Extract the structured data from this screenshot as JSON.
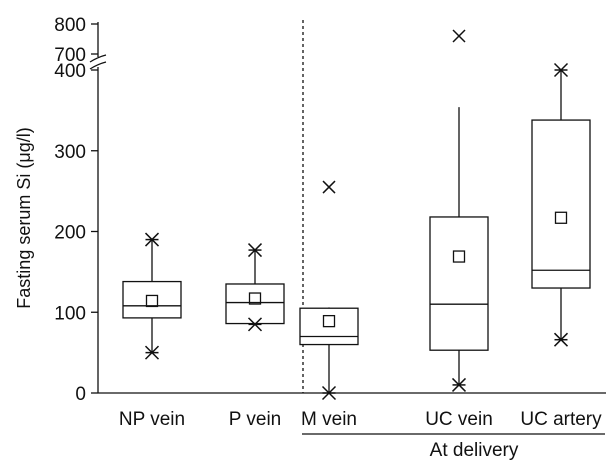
{
  "chart_data": {
    "type": "box",
    "title": "",
    "ylabel": "Fasting serum Si (μg/l)",
    "xlabel": "",
    "axis_break": {
      "lower_range": [
        0,
        400
      ],
      "upper_range": [
        700,
        800
      ],
      "upper_ticks": [
        700,
        800
      ]
    },
    "yticks": [
      0,
      100,
      200,
      300,
      400
    ],
    "group_label": "At delivery",
    "group_members": [
      "M vein",
      "UC vein",
      "UC artery"
    ],
    "divider_between": [
      "P vein",
      "M vein"
    ],
    "categories": [
      "NP vein",
      "P vein",
      "M vein",
      "UC vein",
      "UC artery"
    ],
    "boxes": [
      {
        "label": "NP vein",
        "whisker_low": 50,
        "q1": 93,
        "median": 108,
        "q3": 138,
        "whisker_high": 190,
        "mean": 114,
        "min_outlier": 50,
        "max_outlier": 190,
        "extra_outliers": []
      },
      {
        "label": "P vein",
        "whisker_low": 85,
        "q1": 86,
        "median": 112,
        "q3": 135,
        "whisker_high": 177,
        "mean": 117,
        "min_outlier": 85,
        "max_outlier": 177,
        "extra_outliers": []
      },
      {
        "label": "M vein",
        "whisker_low": 0,
        "q1": 60,
        "median": 70,
        "q3": 105,
        "whisker_high": 106,
        "mean": 89,
        "min_outlier": 0,
        "max_outlier": null,
        "extra_outliers": [
          255
        ]
      },
      {
        "label": "UC vein",
        "whisker_low": 10,
        "q1": 53,
        "median": 110,
        "q3": 218,
        "whisker_high": 354,
        "mean": 169,
        "min_outlier": 10,
        "max_outlier": 760,
        "extra_outliers": []
      },
      {
        "label": "UC artery",
        "whisker_low": 66,
        "q1": 130,
        "median": 152,
        "q3": 338,
        "whisker_high": 400,
        "mean": 217,
        "min_outlier": 66,
        "max_outlier": 400,
        "extra_outliers": []
      }
    ]
  }
}
